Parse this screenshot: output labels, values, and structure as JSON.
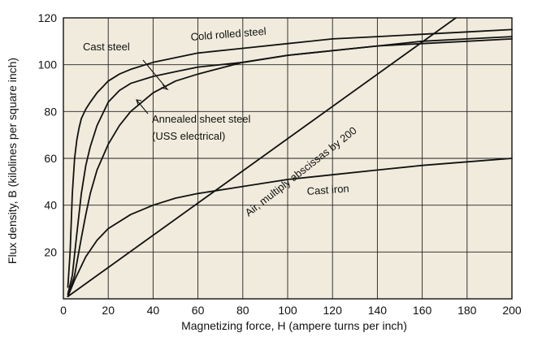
{
  "chart_data": {
    "type": "line",
    "xlabel": "Magnetizing force, H (ampere turns per inch)",
    "ylabel": "Flux density, B (kilolines per square inch)",
    "xlim": [
      0,
      200
    ],
    "ylim": [
      0,
      120
    ],
    "x_ticks": [
      "0",
      "20",
      "40",
      "60",
      "80",
      "100",
      "120",
      "140",
      "160",
      "180",
      "200"
    ],
    "y_ticks": [
      "20",
      "40",
      "60",
      "80",
      "100",
      "120"
    ],
    "grid": true,
    "background": "#f0ebdc",
    "series": [
      {
        "name": "Cold rolled steel",
        "x": [
          2,
          3,
          4,
          5,
          6,
          7,
          8,
          10,
          12,
          15,
          20,
          25,
          30,
          40,
          50,
          60,
          80,
          100,
          120,
          140,
          160,
          180,
          200
        ],
        "y": [
          5,
          20,
          45,
          60,
          68,
          73,
          77,
          81,
          84,
          88,
          93,
          96,
          98,
          101,
          103,
          105,
          107,
          109,
          111,
          112,
          113,
          114,
          115
        ]
      },
      {
        "name": "Cast steel",
        "x": [
          2,
          4,
          6,
          8,
          10,
          12,
          15,
          20,
          25,
          30,
          40,
          50,
          60,
          80,
          100,
          120,
          140,
          160,
          180,
          200
        ],
        "y": [
          2,
          10,
          28,
          45,
          57,
          65,
          74,
          84,
          89,
          92,
          95,
          97,
          99,
          101,
          104,
          106,
          108,
          109,
          110,
          111
        ]
      },
      {
        "name": "Annealed sheet steel (USS electrical)",
        "x": [
          2,
          5,
          8,
          10,
          12,
          15,
          20,
          25,
          30,
          40,
          50,
          60,
          80,
          100,
          120,
          140,
          160,
          180,
          200
        ],
        "y": [
          1,
          10,
          26,
          36,
          45,
          55,
          66,
          74,
          80,
          88,
          93,
          96,
          101,
          104,
          106,
          108,
          110,
          111,
          112
        ]
      },
      {
        "name": "Cast iron",
        "x": [
          2,
          5,
          10,
          15,
          20,
          30,
          40,
          50,
          60,
          80,
          100,
          120,
          140,
          160,
          180,
          200
        ],
        "y": [
          1,
          8,
          18,
          25,
          30,
          36,
          40,
          43,
          45,
          48,
          51,
          53,
          55,
          57,
          58.5,
          60
        ]
      },
      {
        "name": "Air, multiply abscissas by 200",
        "x": [
          2,
          175
        ],
        "y": [
          1,
          120
        ]
      }
    ],
    "annotations": {
      "cold_rolled": "Cold rolled steel",
      "cast_steel": "Cast steel",
      "annealed_line1": "Annealed sheet steel",
      "annealed_line2": "(USS electrical)",
      "air": "Air, multiply abscissas by 200",
      "cast_iron": "Cast iron"
    }
  }
}
